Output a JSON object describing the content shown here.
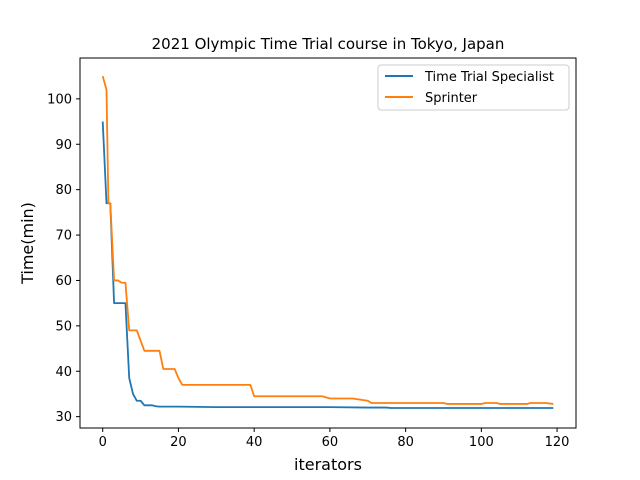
{
  "chart_data": {
    "type": "line",
    "title": "2021 Olympic Time Trial course in Tokyo, Japan",
    "xlabel": "iterators",
    "ylabel": "Time(min)",
    "xlim": [
      -6,
      125
    ],
    "ylim": [
      27.5,
      109
    ],
    "xticks": [
      0,
      20,
      40,
      60,
      80,
      100,
      120
    ],
    "yticks": [
      30,
      40,
      50,
      60,
      70,
      80,
      90,
      100
    ],
    "grid": false,
    "legend_position": "top-right",
    "series": [
      {
        "name": "Time Trial Specialist",
        "color": "#1f77b4",
        "x": [
          0,
          1,
          2,
          3,
          4,
          5,
          6,
          7,
          8,
          9,
          10,
          11,
          12,
          13,
          14,
          15,
          20,
          30,
          40,
          50,
          60,
          70,
          75,
          76,
          80,
          90,
          100,
          110,
          119
        ],
        "y": [
          95,
          77,
          77,
          55,
          55,
          55,
          55,
          38.5,
          35,
          33.5,
          33.5,
          32.5,
          32.5,
          32.5,
          32.3,
          32.2,
          32.2,
          32.1,
          32.1,
          32.1,
          32.1,
          32.0,
          32.0,
          31.9,
          31.9,
          31.9,
          31.9,
          31.9,
          31.9
        ]
      },
      {
        "name": "Sprinter",
        "color": "#ff7f0e",
        "x": [
          0,
          1,
          1.5,
          2,
          3,
          4,
          5,
          6,
          7,
          8,
          9,
          11,
          12,
          14,
          15,
          16,
          19,
          20,
          21,
          22,
          25,
          30,
          35,
          39,
          40,
          45,
          50,
          55,
          58,
          60,
          65,
          66,
          70,
          71,
          80,
          90,
          91,
          100,
          101,
          104,
          105,
          110,
          112,
          113,
          116,
          117,
          119
        ],
        "y": [
          105,
          102,
          77,
          77,
          60,
          60,
          59.5,
          59.5,
          49,
          49,
          49,
          44.5,
          44.5,
          44.5,
          44.5,
          40.5,
          40.5,
          38.5,
          37,
          37,
          37,
          37,
          37,
          37,
          34.5,
          34.5,
          34.5,
          34.5,
          34.5,
          34,
          34,
          34,
          33.5,
          33,
          33,
          33,
          32.8,
          32.8,
          33,
          33,
          32.8,
          32.8,
          32.8,
          33,
          33,
          33,
          32.8
        ]
      }
    ]
  }
}
